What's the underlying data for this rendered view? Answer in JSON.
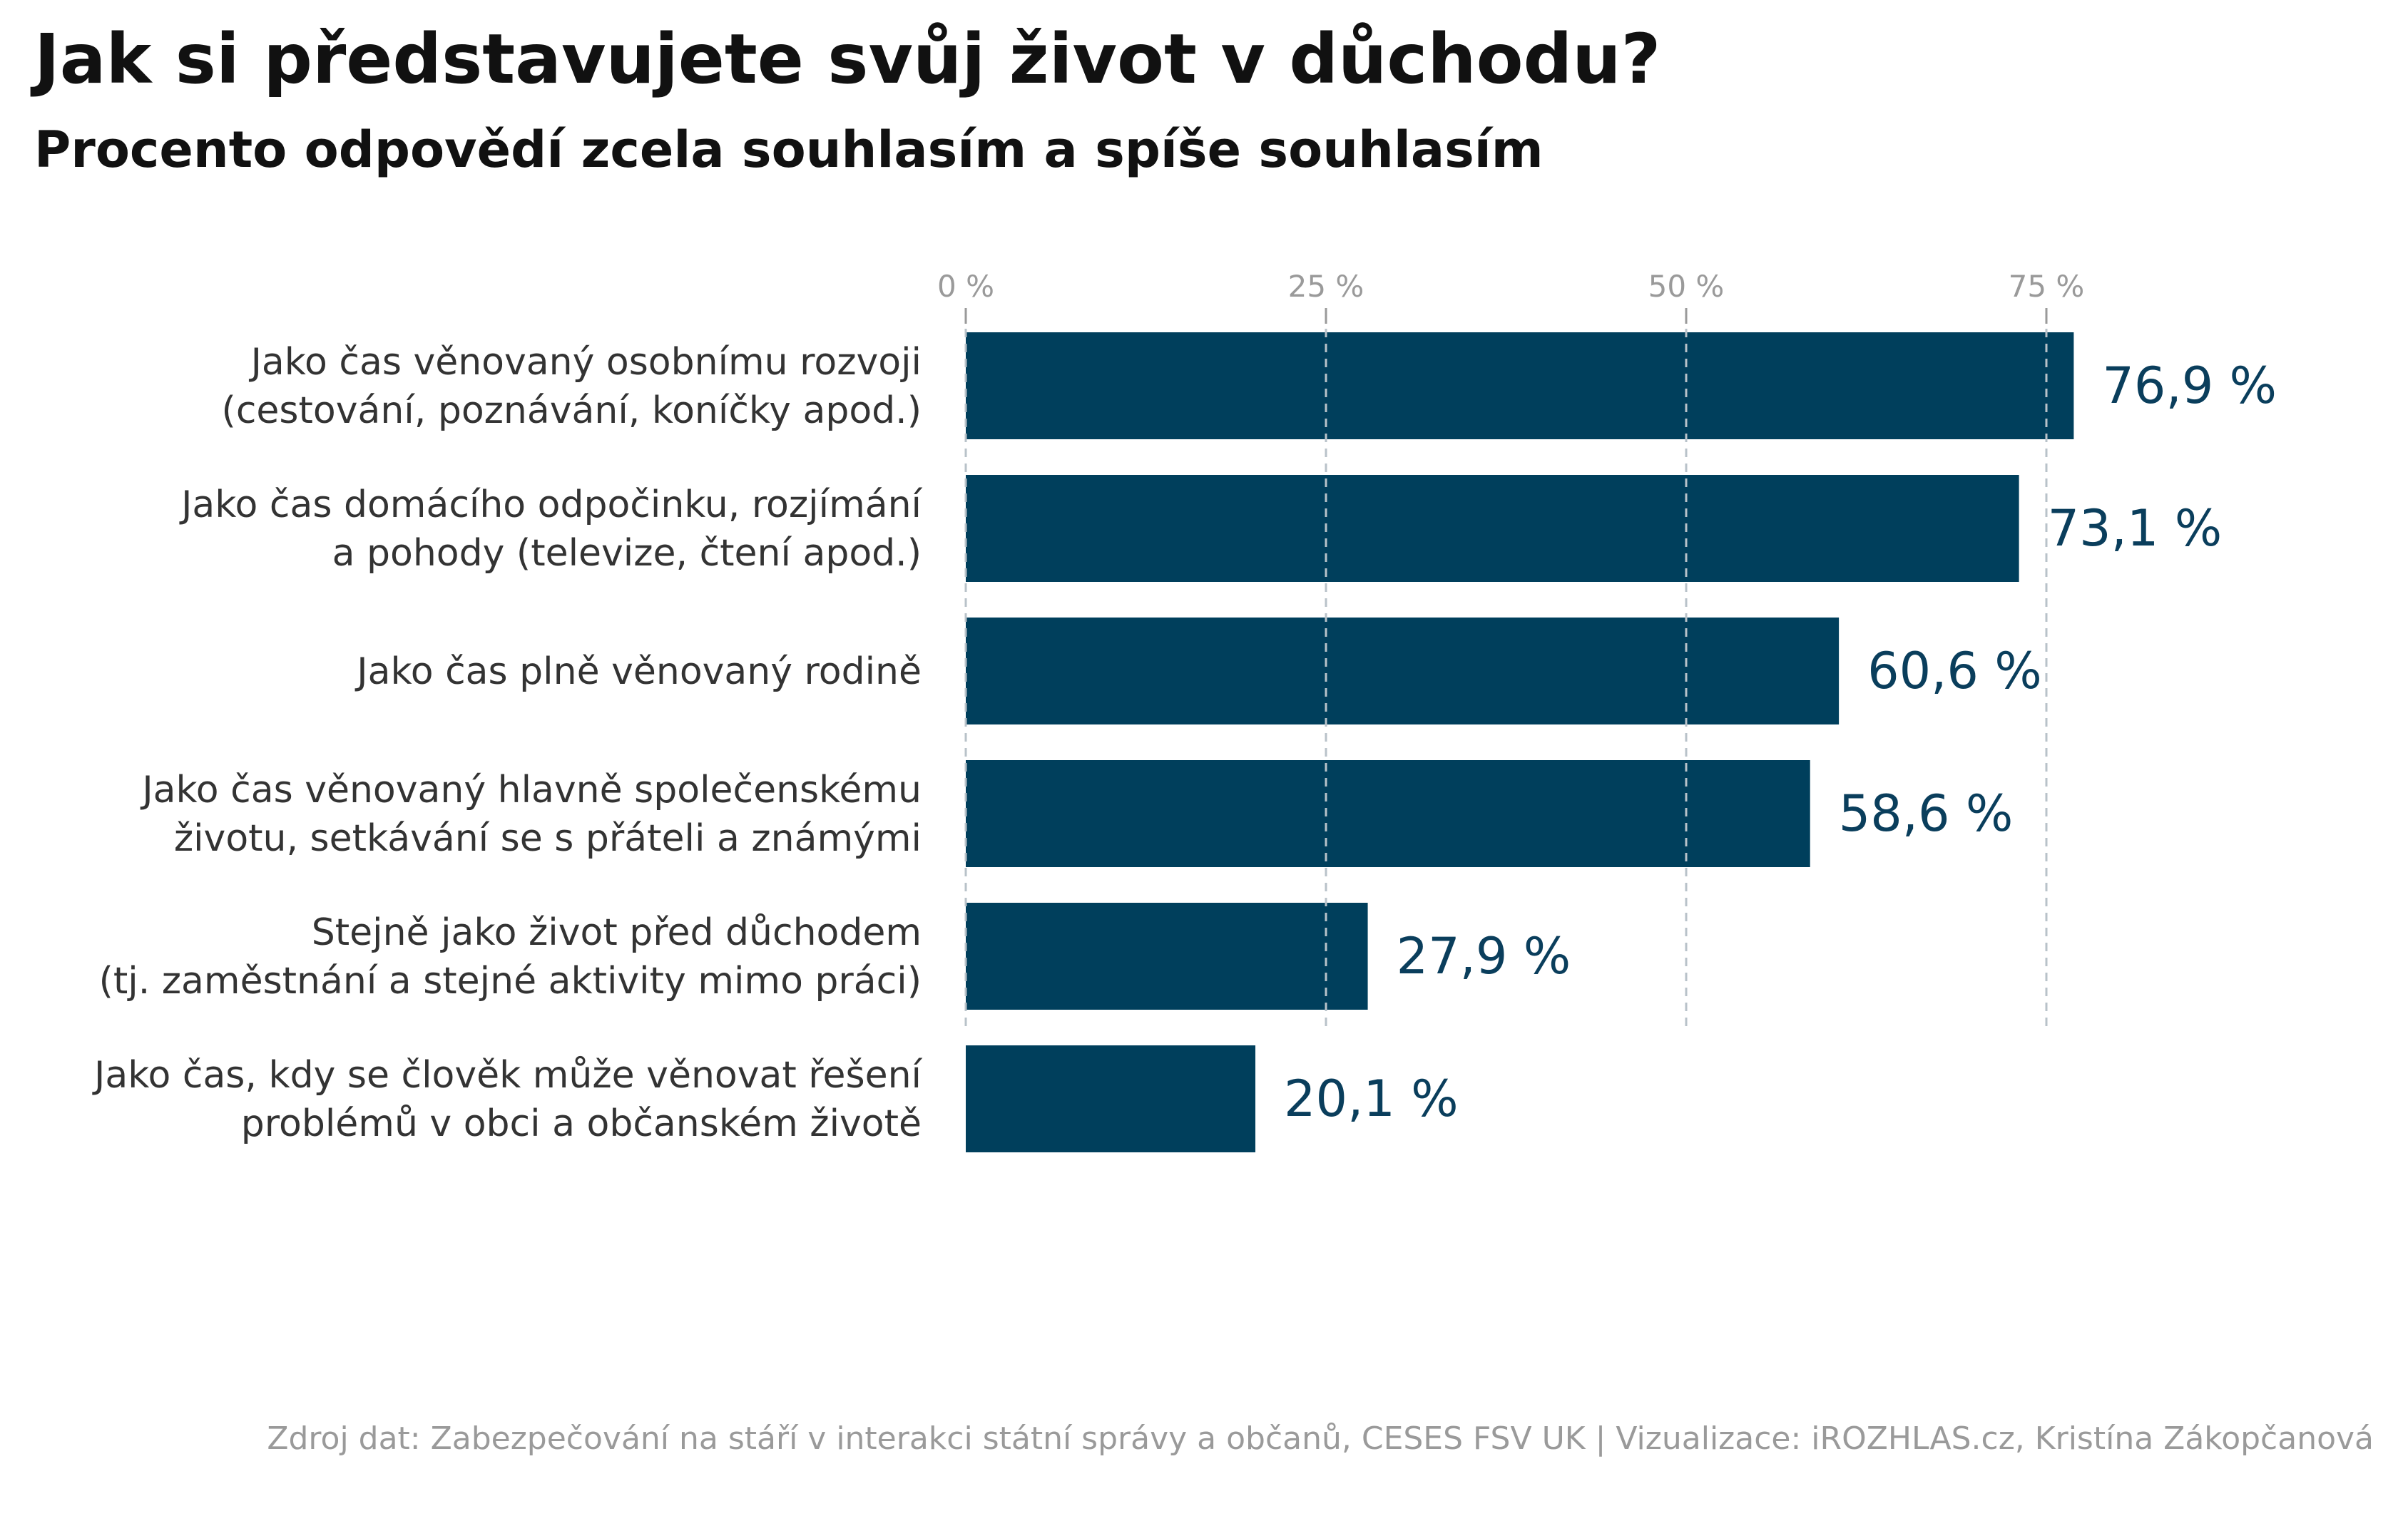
{
  "chart_data": {
    "type": "bar",
    "orientation": "horizontal",
    "title": "Jak si představujete svůj život v důchodu?",
    "subtitle": "Procento odpovědí zcela souhlasím a spíše souhlasím",
    "categories": [
      [
        "Jako čas věnovaný osobnímu rozvoji",
        "(cestování, poznávání, koníčky apod.)"
      ],
      [
        "Jako čas domácího odpočinku, rozjímání",
        "a pohody (televize, čtení apod.)"
      ],
      [
        "Jako čas plně věnovaný rodině"
      ],
      [
        "Jako čas věnovaný hlavně společenskému",
        "životu, setkávání se s přáteli a známými"
      ],
      [
        "Stejně jako život před důchodem",
        "(tj. zaměstnání a stejné aktivity mimo práci)"
      ],
      [
        "Jako čas, kdy se člověk může věnovat řešení",
        "problémů v obci a občanském životě"
      ]
    ],
    "values": [
      76.9,
      73.1,
      60.6,
      58.6,
      27.9,
      20.1
    ],
    "value_labels": [
      "76,9 %",
      "73,1 %",
      "60,6 %",
      "58,6 %",
      "27,9 %",
      "20,1 %"
    ],
    "x_ticks": [
      0,
      25,
      50,
      75
    ],
    "x_tick_labels": [
      "0 %",
      "25 %",
      "50 %",
      "75 %"
    ],
    "xlim": [
      0,
      100
    ],
    "grid": "dashed vertical lines drawn over bars",
    "tick_position": "top",
    "colors": {
      "bar": "#003f5c",
      "value_label": "#0a3e5c",
      "grid": "#b8c2c9",
      "tick": "#9a9a9a",
      "category_label": "#333333"
    }
  },
  "source": "Zdroj dat: Zabezpečování na stáří v interakci státní správy a občanů, CESES FSV UK | Vizualizace: iROZHLAS.cz, Kristína Zákopčanová"
}
